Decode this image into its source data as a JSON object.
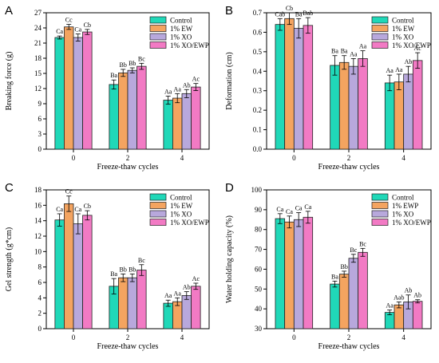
{
  "figure": {
    "colors": {
      "Control": "#20d8b8",
      "EW": "#f4a460",
      "XO": "#b8a8dc",
      "XOEW": "#f27ac4"
    }
  },
  "chart_data": [
    {
      "panel": "A",
      "type": "bar",
      "categories": [
        "0",
        "2",
        "4"
      ],
      "xlabel": "Freeze-thaw cycles",
      "ylabel": "Breaking force (g)",
      "ylim": [
        0,
        27
      ],
      "yticks": [
        0,
        3,
        6,
        9,
        12,
        15,
        18,
        21,
        24,
        27
      ],
      "legend_position": "top-right",
      "series": [
        {
          "name": "Control",
          "values": [
            22.1,
            12.8,
            9.7
          ],
          "errors": [
            0.3,
            0.9,
            0.8
          ],
          "labels": [
            "Ca",
            "Ba",
            "Aa"
          ]
        },
        {
          "name": "1% EW",
          "values": [
            24.2,
            15.1,
            10.1
          ],
          "errors": [
            0.5,
            0.7,
            0.9
          ],
          "labels": [
            "Cc",
            "Bb",
            "Aa"
          ]
        },
        {
          "name": "1% XO",
          "values": [
            22.1,
            15.6,
            11.0
          ],
          "errors": [
            0.7,
            0.5,
            0.8
          ],
          "labels": [
            "Ca",
            "Bb",
            "Ab"
          ]
        },
        {
          "name": "1% XO/EWP",
          "values": [
            23.2,
            16.4,
            12.3
          ],
          "errors": [
            0.5,
            0.6,
            0.7
          ],
          "labels": [
            "Cb",
            "Bc",
            "Ac"
          ]
        }
      ]
    },
    {
      "panel": "B",
      "type": "bar",
      "categories": [
        "0",
        "2",
        "4"
      ],
      "xlabel": "Freeze-thaw cycles",
      "ylabel": "Deformation (cm)",
      "ylim": [
        0,
        0.7
      ],
      "yticks": [
        0.0,
        0.1,
        0.2,
        0.3,
        0.4,
        0.5,
        0.6,
        0.7
      ],
      "legend_position": "top-right",
      "series": [
        {
          "name": "Control",
          "values": [
            0.64,
            0.43,
            0.34
          ],
          "errors": [
            0.03,
            0.05,
            0.04
          ],
          "labels": [
            "Cab",
            "Ba",
            "Aa"
          ]
        },
        {
          "name": "1% EW",
          "values": [
            0.67,
            0.445,
            0.345
          ],
          "errors": [
            0.03,
            0.035,
            0.04
          ],
          "labels": [
            "Cb",
            "Ba",
            "Aa"
          ]
        },
        {
          "name": "1% XO",
          "values": [
            0.62,
            0.425,
            0.385
          ],
          "errors": [
            0.05,
            0.04,
            0.04
          ],
          "labels": [
            "Ba",
            "Aa",
            "Ab"
          ]
        },
        {
          "name": "1% XO/EWP",
          "values": [
            0.635,
            0.465,
            0.455
          ],
          "errors": [
            0.04,
            0.04,
            0.04
          ],
          "labels": [
            "Bab",
            "Aa",
            "Ac"
          ]
        }
      ]
    },
    {
      "panel": "C",
      "type": "bar",
      "categories": [
        "0",
        "2",
        "4"
      ],
      "xlabel": "Freeze-thaw cycles",
      "ylabel": "Gel strength (g*cm)",
      "ylim": [
        0,
        18
      ],
      "yticks": [
        0,
        2,
        4,
        6,
        8,
        10,
        12,
        14,
        16,
        18
      ],
      "legend_position": "top-right",
      "series": [
        {
          "name": "Control",
          "values": [
            14.1,
            5.5,
            3.3
          ],
          "errors": [
            0.8,
            1.0,
            0.4
          ],
          "labels": [
            "Ca",
            "Ba",
            "Aa"
          ]
        },
        {
          "name": "1% EW",
          "values": [
            16.2,
            6.6,
            3.5
          ],
          "errors": [
            1.0,
            0.5,
            0.5
          ],
          "labels": [
            "Cc",
            "Bb",
            "Aa"
          ]
        },
        {
          "name": "1% XO",
          "values": [
            13.6,
            6.6,
            4.3
          ],
          "errors": [
            1.3,
            0.5,
            0.5
          ],
          "labels": [
            "Ca",
            "Bb",
            "Ab"
          ]
        },
        {
          "name": "1% XO/EWP",
          "values": [
            14.7,
            7.6,
            5.5
          ],
          "errors": [
            0.6,
            0.7,
            0.4
          ],
          "labels": [
            "Cb",
            "Bc",
            "Ac"
          ]
        }
      ]
    },
    {
      "panel": "D",
      "type": "bar",
      "categories": [
        "0",
        "2",
        "4"
      ],
      "xlabel": "Freeze-thaw cycles",
      "ylabel": "Water holding capacity (%)",
      "ylim": [
        30,
        100
      ],
      "yticks": [
        30,
        40,
        50,
        60,
        70,
        80,
        90,
        100
      ],
      "legend_position": "top-right",
      "series": [
        {
          "name": "Control",
          "values": [
            85.5,
            52.5,
            38.2
          ],
          "errors": [
            2.5,
            1.5,
            1.2
          ],
          "labels": [
            "Ca",
            "Ba",
            "Aa"
          ]
        },
        {
          "name": "1% EWP",
          "values": [
            83.8,
            57.5,
            42.0
          ],
          "errors": [
            3.0,
            1.5,
            1.5
          ],
          "labels": [
            "Ca",
            "Bb",
            "Aab"
          ]
        },
        {
          "name": "1% XO",
          "values": [
            85.0,
            65.5,
            43.5
          ],
          "errors": [
            3.5,
            2.0,
            3.5
          ],
          "labels": [
            "Ca",
            "Bc",
            "Ab"
          ]
        },
        {
          "name": "1% XO/EWP",
          "values": [
            86.2,
            68.5,
            43.8
          ],
          "errors": [
            3.0,
            2.0,
            0.8
          ],
          "labels": [
            "Ca",
            "Bc",
            "Ab"
          ]
        }
      ]
    }
  ]
}
